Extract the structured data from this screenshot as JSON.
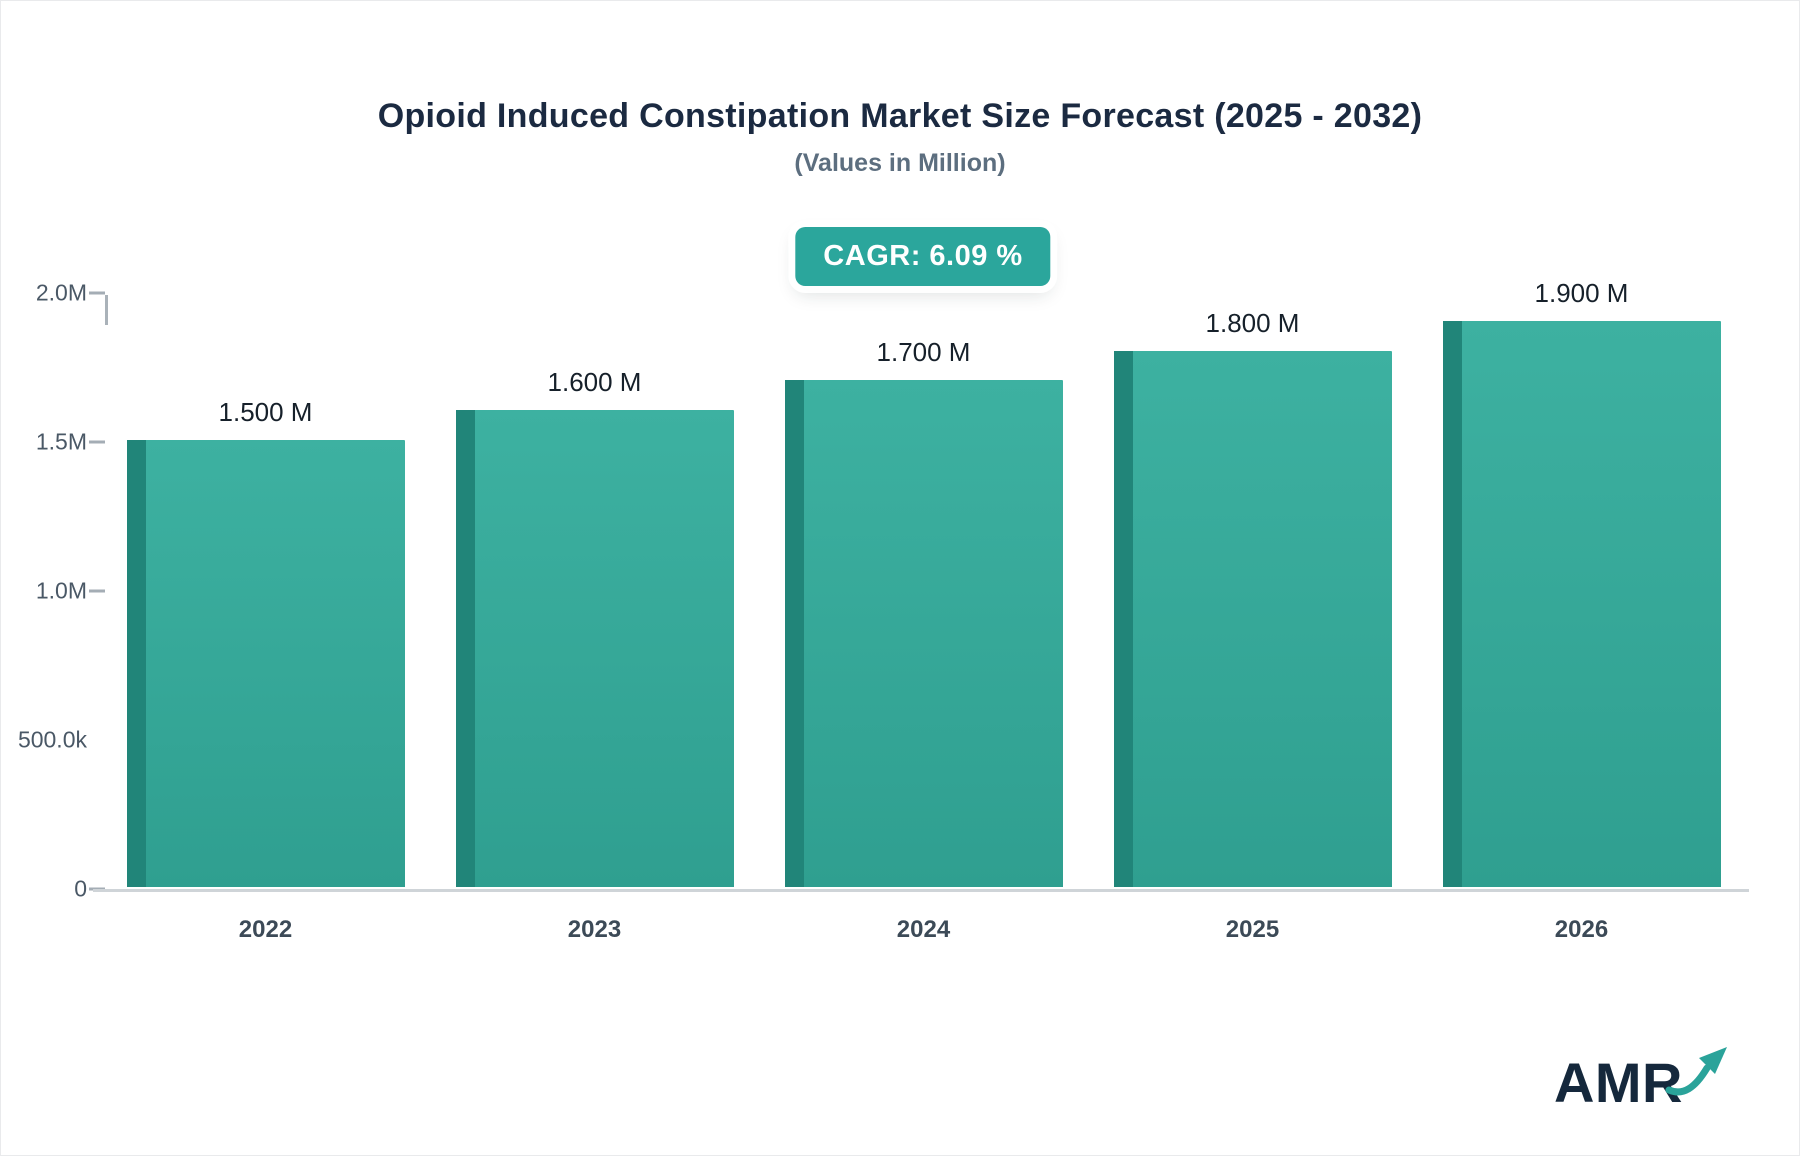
{
  "title": "Opioid Induced Constipation Market Size Forecast (2025 - 2032)",
  "subtitle": "(Values in Million)",
  "cagr_badge": "CAGR: 6.09 %",
  "logo": {
    "text": "AMR"
  },
  "chart_data": {
    "type": "bar",
    "title": "Opioid Induced Constipation Market Size Forecast (2025 - 2032)",
    "subtitle": "(Values in Million)",
    "categories": [
      "2022",
      "2023",
      "2024",
      "2025",
      "2026"
    ],
    "values": [
      1.5,
      1.6,
      1.7,
      1.8,
      1.9
    ],
    "bar_labels": [
      "1.500 M",
      "1.600 M",
      "1.700 M",
      "1.800 M",
      "1.900 M"
    ],
    "xlabel": "",
    "ylabel": "",
    "ylim": [
      0,
      2.0
    ],
    "yticks": [
      {
        "value": 0.0,
        "label": "0",
        "dash": true
      },
      {
        "value": 0.5,
        "label": "500.0k",
        "dash": false
      },
      {
        "value": 1.0,
        "label": "1.0M",
        "dash": true
      },
      {
        "value": 1.5,
        "label": "1.5M",
        "dash": true
      },
      {
        "value": 2.0,
        "label": "2.0M",
        "dash": true
      }
    ],
    "grid": false,
    "legend": false,
    "annotation": "CAGR: 6.09 %",
    "colors": {
      "bar_top": "#3db1a1",
      "bar_bottom": "#2f9f90",
      "bar_side": "#218579",
      "badge": "#2ba69c",
      "title_text": "#1b2a41",
      "subtitle_text": "#5c6e7f",
      "axis_text": "#4a5866",
      "brand_text": "#15283c",
      "brand_arrow": "#2aa39a"
    }
  }
}
